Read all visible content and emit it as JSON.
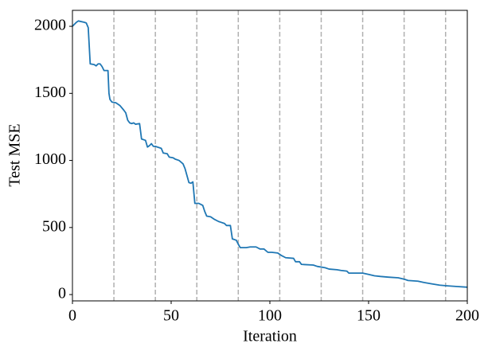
{
  "chart_data": {
    "type": "line",
    "xlabel": "Iteration",
    "ylabel": "Test MSE",
    "x": [
      0,
      2,
      3,
      6,
      7,
      8,
      9,
      11,
      12,
      13,
      14,
      15,
      16,
      18,
      18.5,
      19,
      20,
      22,
      24,
      26,
      27,
      28,
      29,
      30,
      31,
      32,
      34,
      35,
      37,
      38,
      39,
      40,
      41,
      42,
      45,
      46,
      48,
      49,
      51,
      52,
      54,
      56,
      57,
      59,
      60,
      61,
      62,
      64,
      66,
      67,
      68,
      70,
      72,
      74,
      75,
      77,
      78,
      80,
      81,
      83,
      84,
      85,
      88,
      90,
      93,
      95,
      97,
      99,
      101,
      104,
      106,
      108,
      112,
      113,
      115,
      116,
      122,
      124,
      128,
      130,
      134,
      136,
      139,
      140,
      147,
      150,
      153,
      156,
      160,
      165,
      168,
      170,
      175,
      178,
      182,
      186,
      190,
      195,
      200
    ],
    "values": [
      2000,
      2030,
      2040,
      2030,
      2025,
      1990,
      1720,
      1715,
      1705,
      1720,
      1720,
      1700,
      1670,
      1670,
      1500,
      1455,
      1435,
      1430,
      1410,
      1375,
      1355,
      1300,
      1280,
      1275,
      1280,
      1270,
      1275,
      1160,
      1150,
      1100,
      1110,
      1125,
      1105,
      1105,
      1090,
      1055,
      1050,
      1025,
      1020,
      1010,
      1000,
      975,
      940,
      835,
      830,
      840,
      680,
      680,
      665,
      620,
      585,
      580,
      560,
      545,
      540,
      530,
      515,
      515,
      415,
      405,
      375,
      350,
      350,
      355,
      355,
      340,
      340,
      315,
      315,
      310,
      290,
      275,
      270,
      245,
      245,
      225,
      220,
      210,
      200,
      190,
      185,
      180,
      175,
      160,
      160,
      150,
      140,
      135,
      130,
      125,
      115,
      105,
      100,
      90,
      80,
      70,
      65,
      60,
      55
    ],
    "color": "#1f77b4",
    "vlines": [
      21,
      42,
      63,
      84,
      105,
      126,
      147,
      168,
      189
    ],
    "vline_color": "#b0b0b0",
    "xlim": [
      0,
      200
    ],
    "ylim": [
      -47,
      2119
    ],
    "xticks": [
      0,
      50,
      100,
      150,
      200
    ],
    "yticks": [
      0,
      500,
      1000,
      1500,
      2000
    ],
    "grid": false
  }
}
